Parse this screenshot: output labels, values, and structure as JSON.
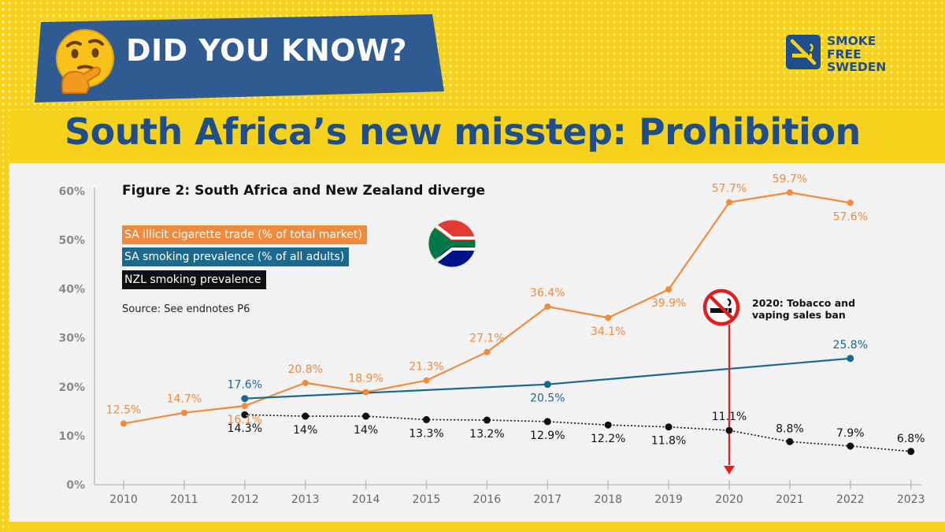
{
  "header": {
    "banner_text": "DID YOU KNOW?",
    "emoji_icon": "thinking-face-icon",
    "logo_icon": "no-smoking-square-icon",
    "logo_lines": [
      "SMOKE",
      "FREE",
      "SWEDEN"
    ]
  },
  "headline": "South Africa’s new misstep: Prohibition",
  "colors": {
    "background": "#F7D21C",
    "banner": "#2F5A92",
    "headline": "#1E4E8C",
    "sa_illicit": "#F08A3C",
    "sa_prevalence": "#1A6A8F",
    "nzl_prevalence": "#111111",
    "ban_marker": "#E02020"
  },
  "chart_data": {
    "type": "line",
    "title": "Figure 2: South Africa and New Zealand diverge",
    "source": "Source: See endnotes P6",
    "x": [
      2010,
      2011,
      2012,
      2013,
      2014,
      2015,
      2016,
      2017,
      2018,
      2019,
      2020,
      2021,
      2022,
      2023
    ],
    "x_ticks": [
      "2010",
      "2011",
      "2012",
      "2013",
      "2014",
      "2015",
      "2016",
      "2017",
      "2018",
      "2019",
      "2020",
      "2021",
      "2022",
      "2023"
    ],
    "y_ticks": [
      "0%",
      "10%",
      "20%",
      "30%",
      "40%",
      "50%",
      "60%"
    ],
    "ylim": [
      0,
      60
    ],
    "grid": false,
    "legend_position": "top-left",
    "series": [
      {
        "name": "SA illicit cigarette trade (% of total market)",
        "x": [
          2010,
          2011,
          2012,
          2013,
          2014,
          2015,
          2016,
          2017,
          2018,
          2019,
          2020,
          2021,
          2022
        ],
        "values": [
          12.5,
          14.7,
          16.1,
          20.8,
          18.9,
          21.3,
          27.1,
          36.4,
          34.1,
          39.9,
          57.7,
          59.7,
          57.6
        ],
        "labels": [
          "12.5%",
          "14.7%",
          "16.1%",
          "20.8%",
          "18.9%",
          "21.3%",
          "27.1%",
          "36.4%",
          "34.1%",
          "39.9%",
          "57.7%",
          "59.7%",
          "57.6%"
        ]
      },
      {
        "name": "SA smoking prevalence (% of all adults)",
        "x": [
          2012,
          2017,
          2022
        ],
        "values": [
          17.6,
          20.5,
          25.8
        ],
        "labels": [
          "17.6%",
          "20.5%",
          "25.8%"
        ]
      },
      {
        "name": "NZL smoking prevalence",
        "x": [
          2012,
          2013,
          2014,
          2015,
          2016,
          2017,
          2018,
          2019,
          2020,
          2021,
          2022,
          2023
        ],
        "values": [
          14.3,
          14,
          14,
          13.3,
          13.2,
          12.9,
          12.2,
          11.8,
          11.1,
          8.8,
          7.9,
          6.8
        ],
        "labels": [
          "14.3%",
          "14%",
          "14%",
          "13.3%",
          "13.2%",
          "12.9%",
          "12.2%",
          "11.8%",
          "11.1%",
          "8.8%",
          "7.9%",
          "6.8%"
        ]
      }
    ],
    "annotations": [
      {
        "x": 2020,
        "text_lines": [
          "2020: Tobacco and",
          "vaping sales ban"
        ],
        "icon": "no-smoking-icon"
      }
    ]
  }
}
